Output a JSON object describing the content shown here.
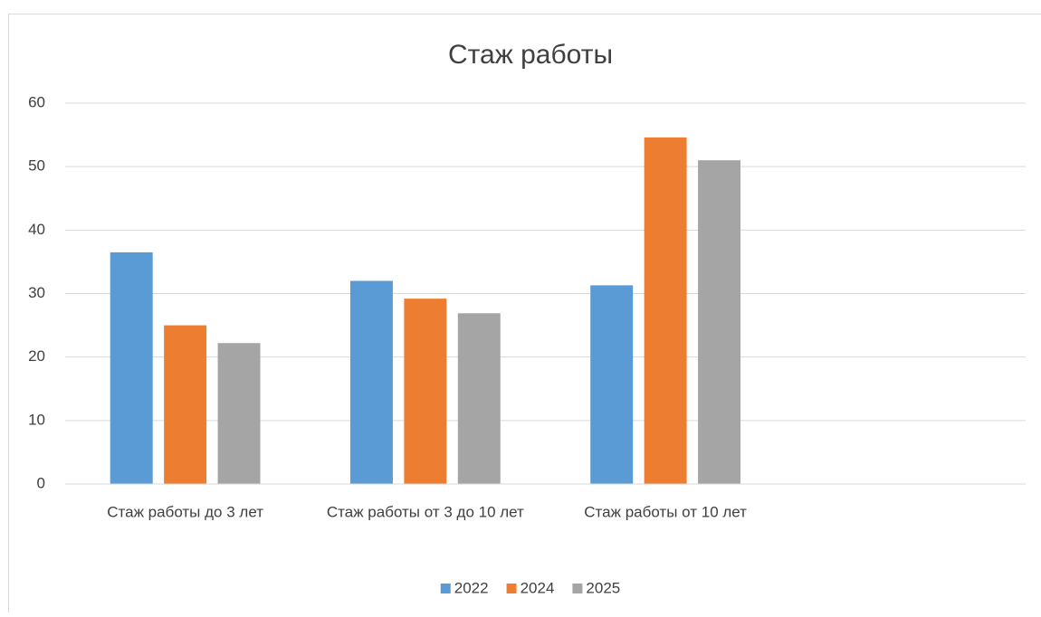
{
  "chart_data": {
    "type": "bar",
    "title": "Стаж работы",
    "categories": [
      "Стаж работы до 3 лет",
      "Стаж работы от 3 до 10 лет",
      "Стаж работы от 10 лет",
      null
    ],
    "series": [
      {
        "name": "2022",
        "color": "#5b9bd5",
        "values": [
          36.5,
          32,
          31.3,
          null
        ]
      },
      {
        "name": "2024",
        "color": "#ed7d31",
        "values": [
          25,
          29.2,
          54.6,
          null
        ]
      },
      {
        "name": "2025",
        "color": "#a5a5a5",
        "values": [
          22.2,
          26.9,
          51,
          null
        ]
      }
    ],
    "ylim": [
      0,
      60
    ],
    "yticks": [
      0,
      10,
      20,
      30,
      40,
      50,
      60
    ],
    "grid": true,
    "legend": "bottom"
  }
}
